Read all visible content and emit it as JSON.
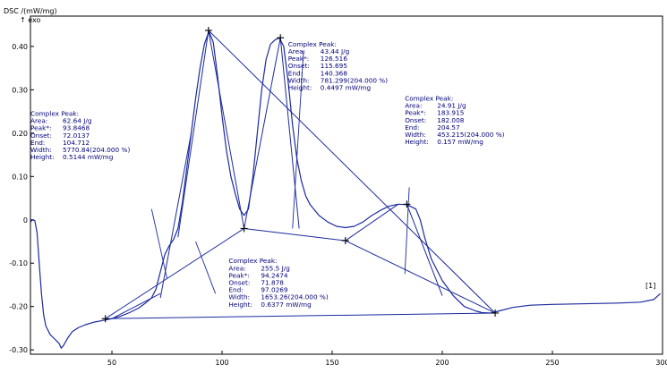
{
  "chart_data": {
    "type": "line",
    "title": "",
    "ylabel": "DSC /(mW/mg)",
    "exo_label": "↑ exo",
    "xlabel": "",
    "xlim": [
      13,
      300
    ],
    "ylim": [
      -0.31,
      0.47
    ],
    "x_ticks": [
      50,
      100,
      150,
      200,
      250,
      300
    ],
    "y_ticks": [
      {
        "v": 0.4,
        "label": "0.40"
      },
      {
        "v": 0.3,
        "label": "0.30"
      },
      {
        "v": 0.2,
        "label": "0.20"
      },
      {
        "v": 0.1,
        "label": "0.10"
      },
      {
        "v": 0.0,
        "label": "0"
      },
      {
        "v": -0.1,
        "label": "-0.10"
      },
      {
        "v": -0.2,
        "label": "-0.20"
      },
      {
        "v": -0.3,
        "label": "-0.30"
      }
    ],
    "curve_label": "[1]",
    "line_color": "#1c2a9e",
    "series": [
      {
        "points": [
          [
            13,
            -0.005
          ],
          [
            14,
            0.0
          ],
          [
            15,
            -0.002
          ],
          [
            16,
            -0.03
          ],
          [
            17,
            -0.1
          ],
          [
            18,
            -0.17
          ],
          [
            19,
            -0.22
          ],
          [
            20,
            -0.245
          ],
          [
            22,
            -0.265
          ],
          [
            24,
            -0.275
          ],
          [
            26,
            -0.285
          ],
          [
            27,
            -0.296
          ],
          [
            28,
            -0.29
          ],
          [
            30,
            -0.272
          ],
          [
            32,
            -0.258
          ],
          [
            35,
            -0.248
          ],
          [
            38,
            -0.242
          ],
          [
            42,
            -0.236
          ],
          [
            46,
            -0.232
          ],
          [
            50,
            -0.228
          ],
          [
            54,
            -0.222
          ],
          [
            58,
            -0.214
          ],
          [
            62,
            -0.204
          ],
          [
            65,
            -0.193
          ],
          [
            68,
            -0.18
          ],
          [
            70,
            -0.16
          ],
          [
            72,
            -0.12
          ],
          [
            74,
            -0.08
          ],
          [
            76,
            -0.06
          ],
          [
            78,
            -0.045
          ],
          [
            80,
            -0.02
          ],
          [
            82,
            0.04
          ],
          [
            84,
            0.12
          ],
          [
            86,
            0.2
          ],
          [
            88,
            0.28
          ],
          [
            90,
            0.35
          ],
          [
            92,
            0.405
          ],
          [
            94,
            0.435
          ],
          [
            96,
            0.41
          ],
          [
            98,
            0.33
          ],
          [
            100,
            0.24
          ],
          [
            102,
            0.16
          ],
          [
            104,
            0.1
          ],
          [
            106,
            0.06
          ],
          [
            108,
            0.025
          ],
          [
            110,
            0.01
          ],
          [
            112,
            0.025
          ],
          [
            114,
            0.1
          ],
          [
            116,
            0.2
          ],
          [
            118,
            0.3
          ],
          [
            120,
            0.37
          ],
          [
            122,
            0.405
          ],
          [
            124,
            0.415
          ],
          [
            126,
            0.42
          ],
          [
            128,
            0.4
          ],
          [
            130,
            0.32
          ],
          [
            132,
            0.22
          ],
          [
            134,
            0.14
          ],
          [
            136,
            0.09
          ],
          [
            138,
            0.055
          ],
          [
            140,
            0.035
          ],
          [
            144,
            0.01
          ],
          [
            148,
            -0.005
          ],
          [
            152,
            -0.015
          ],
          [
            156,
            -0.018
          ],
          [
            160,
            -0.015
          ],
          [
            164,
            -0.005
          ],
          [
            168,
            0.01
          ],
          [
            172,
            0.022
          ],
          [
            176,
            0.032
          ],
          [
            180,
            0.036
          ],
          [
            184,
            0.035
          ],
          [
            188,
            0.025
          ],
          [
            190,
            0.0
          ],
          [
            192,
            -0.04
          ],
          [
            195,
            -0.09
          ],
          [
            200,
            -0.14
          ],
          [
            205,
            -0.175
          ],
          [
            210,
            -0.2
          ],
          [
            215,
            -0.21
          ],
          [
            218,
            -0.214
          ],
          [
            222,
            -0.215
          ],
          [
            226,
            -0.21
          ],
          [
            232,
            -0.202
          ],
          [
            240,
            -0.197
          ],
          [
            250,
            -0.195
          ],
          [
            260,
            -0.194
          ],
          [
            270,
            -0.193
          ],
          [
            280,
            -0.192
          ],
          [
            290,
            -0.19
          ],
          [
            296,
            -0.184
          ],
          [
            299,
            -0.17
          ]
        ]
      }
    ],
    "peak_markers": [
      [
        93.85,
        0.437
      ],
      [
        126.5,
        0.42
      ],
      [
        183.9,
        0.036
      ],
      [
        110,
        -0.02
      ],
      [
        156,
        -0.048
      ],
      [
        47,
        -0.228
      ],
      [
        224,
        -0.215
      ]
    ],
    "construction_lines": [
      [
        [
          47,
          -0.228
        ],
        [
          224,
          -0.215
        ]
      ],
      [
        [
          47,
          -0.228
        ],
        [
          110,
          -0.02
        ]
      ],
      [
        [
          110,
          -0.02
        ],
        [
          156,
          -0.048
        ]
      ],
      [
        [
          156,
          -0.048
        ],
        [
          224,
          -0.215
        ]
      ],
      [
        [
          93.85,
          0.437
        ],
        [
          224,
          -0.215
        ]
      ],
      [
        [
          93.85,
          0.437
        ],
        [
          110,
          -0.02
        ]
      ],
      [
        [
          80,
          -0.04
        ],
        [
          93.85,
          0.437
        ]
      ],
      [
        [
          72,
          -0.18
        ],
        [
          86,
          0.2
        ]
      ],
      [
        [
          50,
          -0.228
        ],
        [
          72,
          -0.17
        ]
      ],
      [
        [
          110,
          -0.02
        ],
        [
          126.5,
          0.42
        ]
      ],
      [
        [
          126.5,
          0.42
        ],
        [
          135,
          -0.02
        ]
      ],
      [
        [
          183.9,
          0.036
        ],
        [
          200,
          -0.175
        ]
      ],
      [
        [
          156,
          -0.048
        ],
        [
          180,
          0.036
        ]
      ]
    ],
    "leader_lines": [
      [
        [
          68,
          0.025
        ],
        [
          75,
          -0.135
        ]
      ],
      [
        [
          137,
          0.39
        ],
        [
          132,
          -0.02
        ]
      ],
      [
        [
          185,
          0.075
        ],
        [
          183,
          -0.125
        ]
      ],
      [
        [
          97,
          -0.17
        ],
        [
          88,
          -0.05
        ]
      ]
    ],
    "annotations": [
      {
        "anchor": [
          13,
          0.24
        ],
        "lines": [
          {
            "k": "Complex Peak:",
            "v": ""
          },
          {
            "k": "Area:",
            "v": "62.64 J/g"
          },
          {
            "k": "Peak*:",
            "v": "93.8468"
          },
          {
            "k": "Onset:",
            "v": "72.0137"
          },
          {
            "k": "End:",
            "v": "104.712"
          },
          {
            "k": "Width:",
            "v": "5770.84(204.000 %)"
          },
          {
            "k": "Height:",
            "v": "0.5144 mW/mg"
          }
        ]
      },
      {
        "anchor": [
          130,
          0.4
        ],
        "lines": [
          {
            "k": "Complex Peak:",
            "v": ""
          },
          {
            "k": "Area:",
            "v": "43.44 J/g"
          },
          {
            "k": "Peak*:",
            "v": "126.516"
          },
          {
            "k": "Onset:",
            "v": "115.695"
          },
          {
            "k": "End:",
            "v": "140.368"
          },
          {
            "k": "Width:",
            "v": "781.299(204.000 %)"
          },
          {
            "k": "Height:",
            "v": "0.4497 mW/mg"
          }
        ]
      },
      {
        "anchor": [
          183,
          0.275
        ],
        "lines": [
          {
            "k": "Complex Peak:",
            "v": ""
          },
          {
            "k": "Area:",
            "v": "24.91 J/g"
          },
          {
            "k": "Peak*:",
            "v": "183.915"
          },
          {
            "k": "Onset:",
            "v": "182.008"
          },
          {
            "k": "End:",
            "v": "204.57"
          },
          {
            "k": "Width:",
            "v": "453.215(204.000 %)"
          },
          {
            "k": "Height:",
            "v": "0.157 mW/mg"
          }
        ]
      },
      {
        "anchor": [
          103,
          -0.1
        ],
        "lines": [
          {
            "k": "Complex Peak:",
            "v": ""
          },
          {
            "k": "Area:",
            "v": "255.5 J/g"
          },
          {
            "k": "Peak*:",
            "v": "94.2474"
          },
          {
            "k": "Onset:",
            "v": "71.878"
          },
          {
            "k": "End:",
            "v": "97.0269"
          },
          {
            "k": "Width:",
            "v": "1653.26(204.000 %)"
          },
          {
            "k": "Height:",
            "v": "0.6377 mW/mg"
          }
        ]
      }
    ]
  }
}
